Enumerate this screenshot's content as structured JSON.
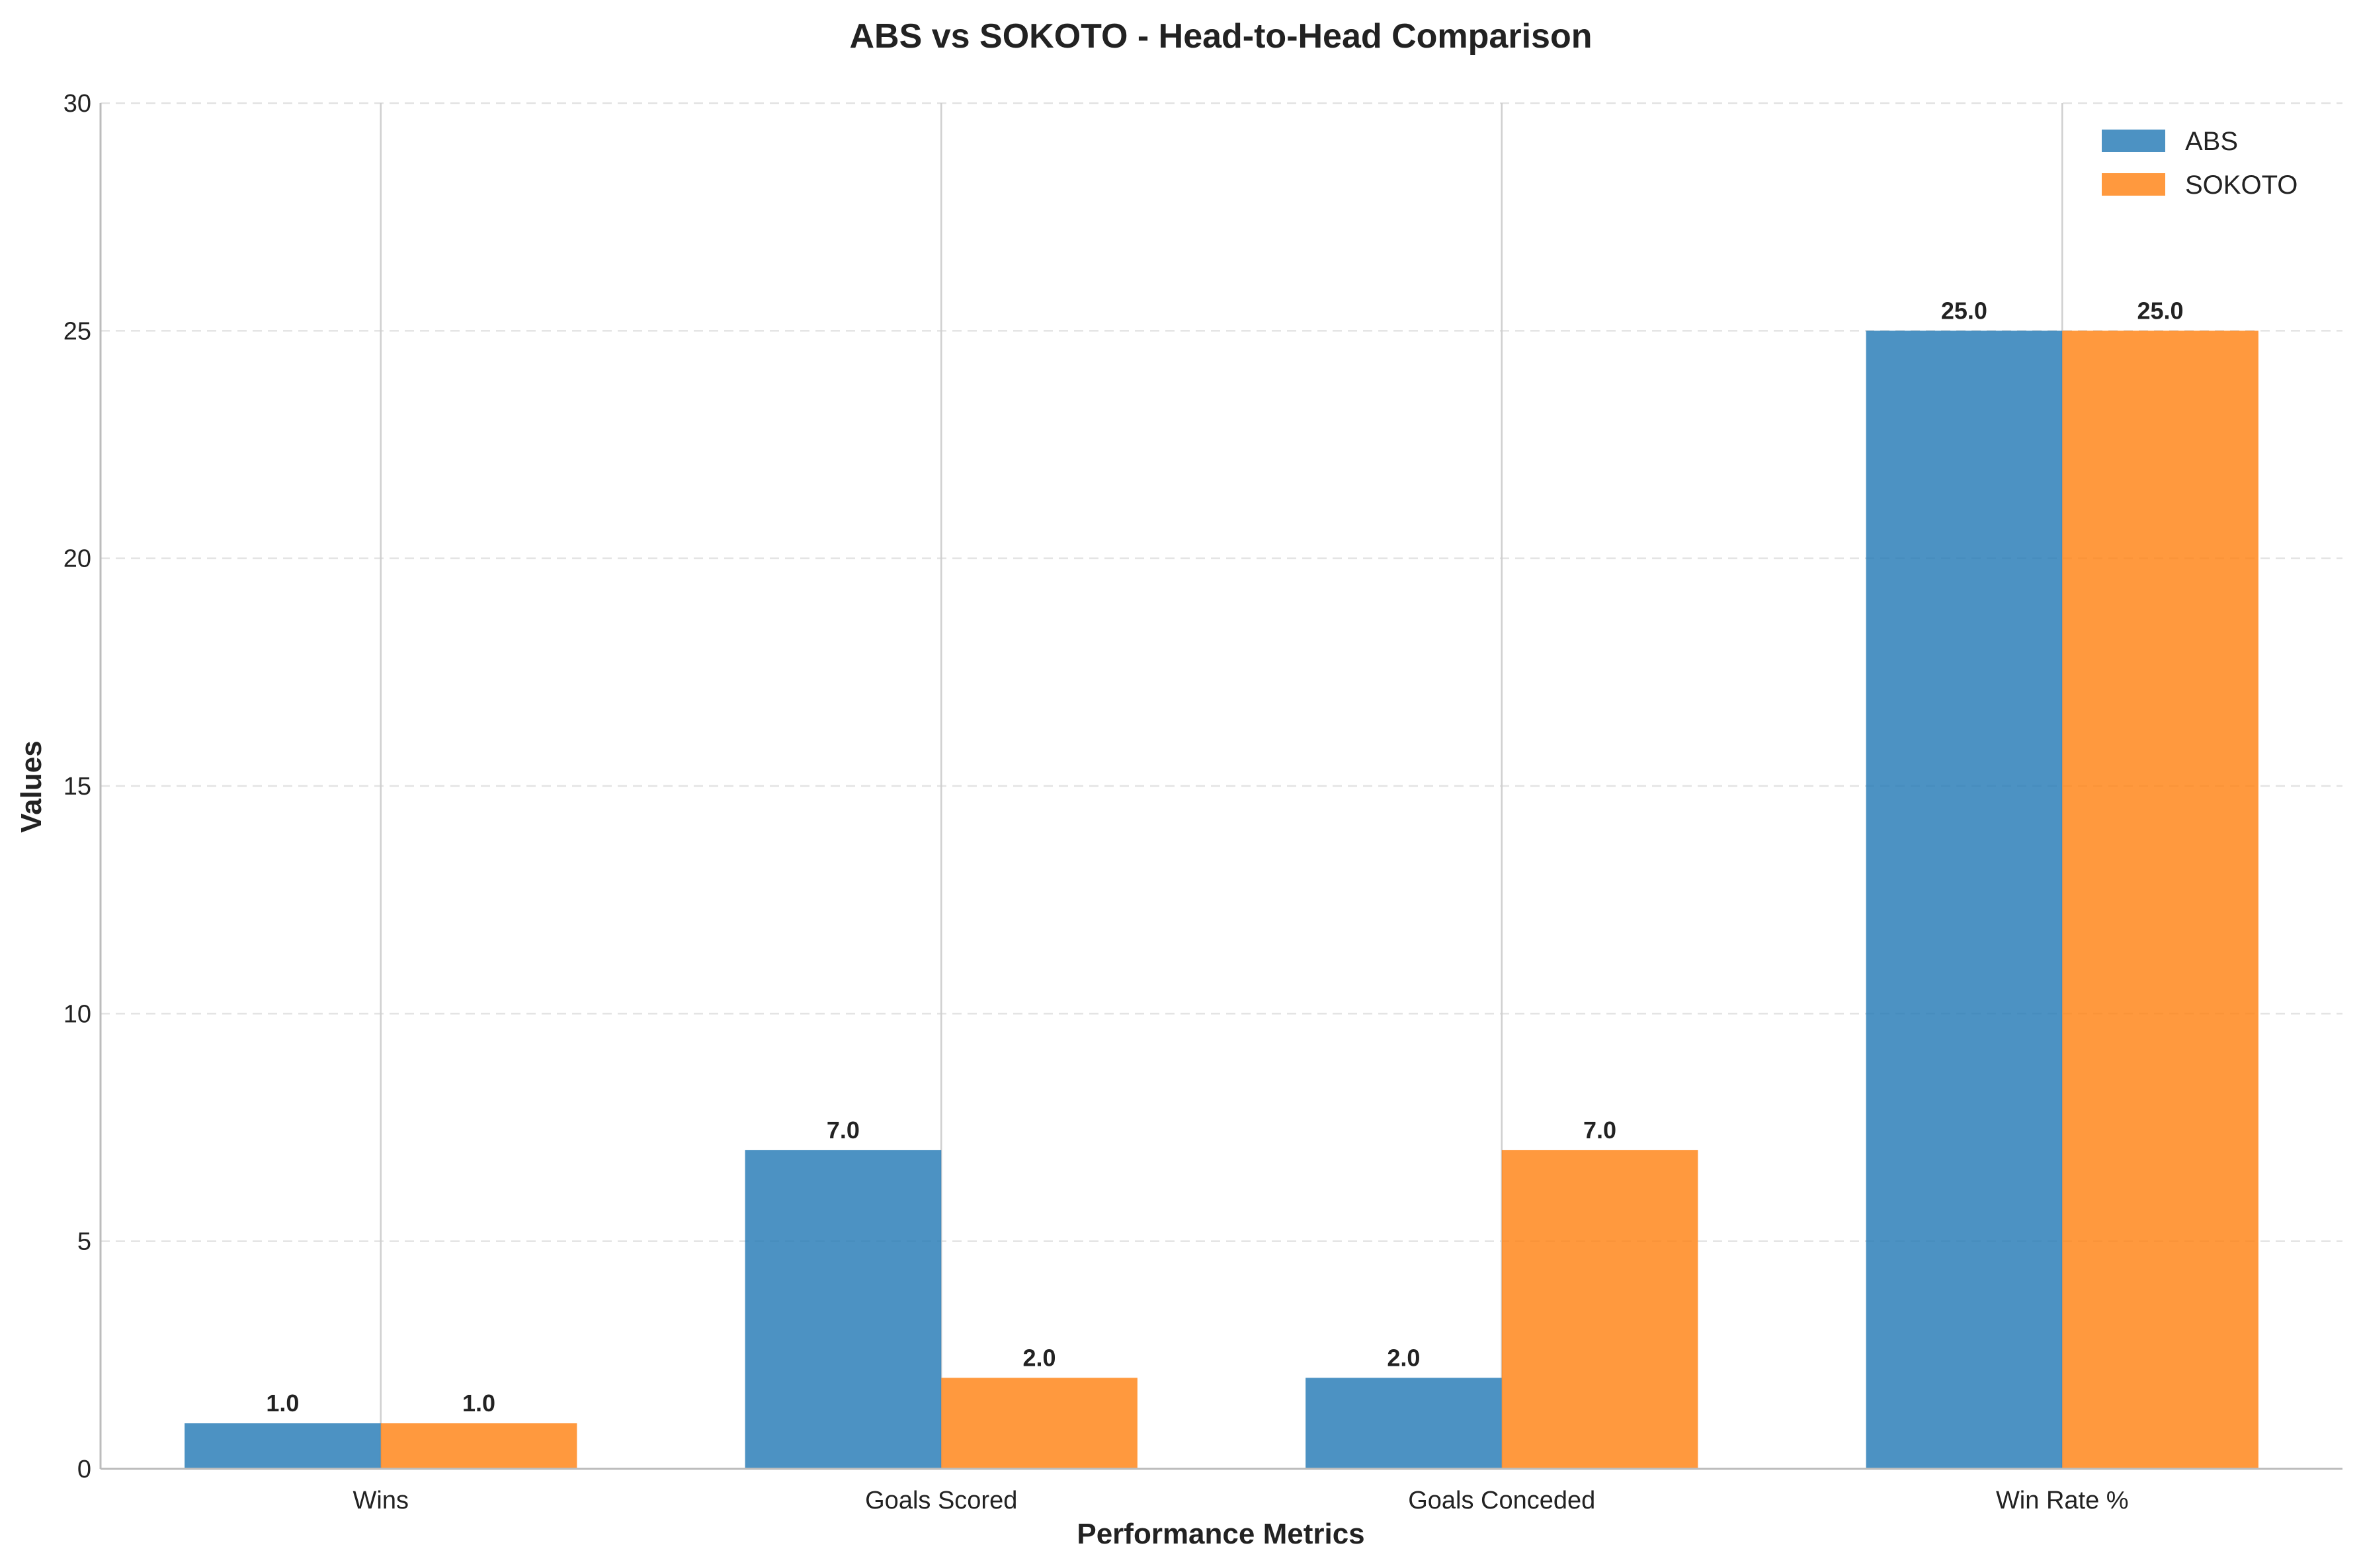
{
  "chart_data": {
    "type": "bar",
    "title": "ABS vs SOKOTO - Head-to-Head Comparison",
    "xlabel": "Performance Metrics",
    "ylabel": "Values",
    "categories": [
      "Wins",
      "Goals Scored",
      "Goals Conceded",
      "Win Rate %"
    ],
    "series": [
      {
        "name": "ABS",
        "values": [
          1.0,
          7.0,
          2.0,
          25.0
        ],
        "color": "#1f77b4"
      },
      {
        "name": "SOKOTO",
        "values": [
          1.0,
          2.0,
          7.0,
          25.0
        ],
        "color": "#ff7f0e"
      }
    ],
    "ylim": [
      0,
      30
    ],
    "yticks": [
      0,
      5,
      10,
      15,
      20,
      25,
      30
    ],
    "value_labels": [
      [
        "1.0",
        "7.0",
        "2.0",
        "25.0"
      ],
      [
        "1.0",
        "2.0",
        "7.0",
        "25.0"
      ]
    ],
    "grid": "y-dashed",
    "legend_position": "top-right"
  }
}
